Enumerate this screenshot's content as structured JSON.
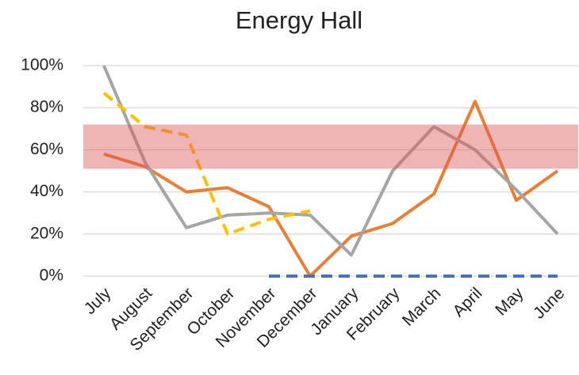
{
  "chart_data": {
    "type": "line",
    "title": "Energy Hall",
    "categories": [
      "July",
      "August",
      "September",
      "October",
      "November",
      "December",
      "January",
      "February",
      "March",
      "April",
      "May",
      "June"
    ],
    "series": [
      {
        "color": "#ED7D31",
        "dashed": false,
        "values": [
          58,
          52,
          40,
          42,
          33,
          0,
          19,
          25,
          39,
          83,
          36,
          50
        ]
      },
      {
        "color": "#A5A5A5",
        "dashed": false,
        "values": [
          100,
          54,
          23,
          29,
          30,
          29,
          10,
          50,
          71,
          60,
          41,
          20
        ]
      },
      {
        "color": "#FFC000",
        "dashed": true,
        "values": [
          87,
          71,
          67,
          20,
          27,
          31,
          null,
          null,
          null,
          null,
          null,
          null
        ]
      },
      {
        "color": "#4472C4",
        "dashed": true,
        "values": [
          null,
          null,
          null,
          null,
          0,
          0,
          0,
          0,
          0,
          0,
          0,
          0
        ]
      }
    ],
    "band": [
      51,
      72
    ],
    "band_color": "#DC5A5A",
    "ylim": [
      0,
      100
    ],
    "yticks": [
      {
        "value": 0,
        "label": "0%"
      },
      {
        "value": 20,
        "label": "20%"
      },
      {
        "value": 40,
        "label": "40%"
      },
      {
        "value": 60,
        "label": "60%"
      },
      {
        "value": 80,
        "label": "80%"
      },
      {
        "value": 100,
        "label": "100%"
      }
    ],
    "grid": true
  }
}
